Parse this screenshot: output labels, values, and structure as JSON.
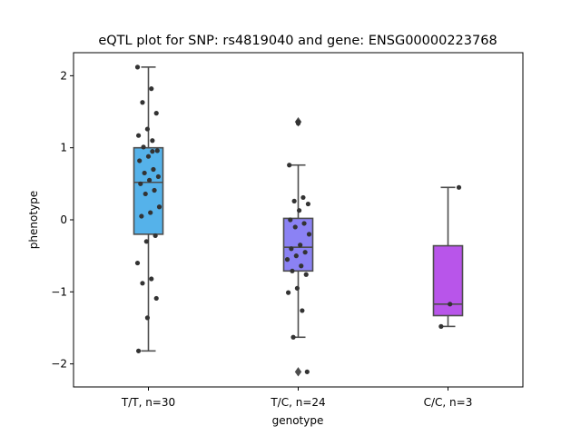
{
  "chart_data": {
    "type": "box",
    "title": "eQTL plot for SNP: rs4819040 and gene: ENSG00000223768",
    "xlabel": "genotype",
    "ylabel": "phenotype",
    "ylim": [
      -2.32,
      2.32
    ],
    "yticks": [
      2,
      1,
      0,
      -1,
      -2
    ],
    "ytick_labels": [
      "2",
      "1",
      "0",
      "−1",
      "−2"
    ],
    "grid": false,
    "categories": [
      "T/T, n=30",
      "T/C, n=24",
      "C/C, n=3"
    ],
    "colors": [
      "#55b2ea",
      "#8b82f4",
      "#b855ea"
    ],
    "boxes": [
      {
        "category": "T/T, n=30",
        "whisker_low": -1.82,
        "q1": -0.2,
        "median": 0.52,
        "q3": 1.0,
        "whisker_high": 2.12,
        "outliers": [],
        "points": [
          2.12,
          1.82,
          1.63,
          1.48,
          1.26,
          1.17,
          1.1,
          1.01,
          0.96,
          0.88,
          0.82,
          0.7,
          0.65,
          0.6,
          0.55,
          0.5,
          0.41,
          0.36,
          0.18,
          0.1,
          0.05,
          -0.22,
          -0.3,
          -0.6,
          -0.82,
          -0.88,
          -1.09,
          -1.36,
          -1.82,
          0.95
        ]
      },
      {
        "category": "T/C, n=24",
        "whisker_low": -1.63,
        "q1": -0.71,
        "median": -0.38,
        "q3": 0.02,
        "whisker_high": 0.76,
        "outliers": [
          1.36,
          -2.11
        ],
        "points": [
          1.36,
          0.76,
          0.31,
          0.26,
          0.22,
          0.13,
          0.0,
          -0.05,
          -0.1,
          -0.2,
          -0.35,
          -0.4,
          -0.45,
          -0.5,
          -0.55,
          -0.64,
          -0.71,
          -0.76,
          -0.95,
          -1.01,
          -1.26,
          -1.63,
          -2.11,
          1.34
        ]
      },
      {
        "category": "C/C, n=3",
        "whisker_low": -1.48,
        "q1": -1.33,
        "median": -1.17,
        "q3": -0.36,
        "whisker_high": 0.45,
        "outliers": [],
        "points": [
          0.45,
          -1.17,
          -1.48
        ]
      }
    ]
  }
}
